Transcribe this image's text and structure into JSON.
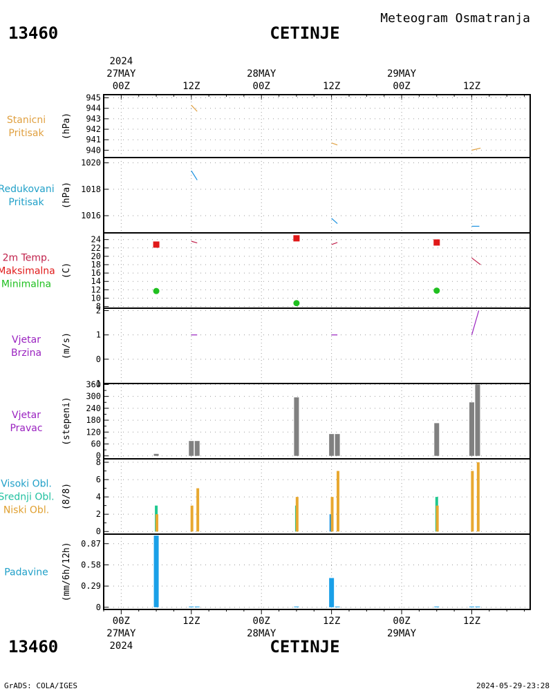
{
  "header": {
    "station_id": "13460",
    "station_name": "CETINJE",
    "product": "Meteogram Osmatranja"
  },
  "footer": {
    "credit": "GrADS: COLA/IGES",
    "timestamp": "2024-05-29-23:28"
  },
  "time_axis": {
    "year": "2024",
    "major_labels": [
      {
        "t": 0,
        "hour": "00Z",
        "date": "27MAY",
        "year": "2024"
      },
      {
        "t": 12,
        "hour": "12Z"
      },
      {
        "t": 24,
        "hour": "00Z",
        "date": "28MAY"
      },
      {
        "t": 36,
        "hour": "12Z"
      },
      {
        "t": 48,
        "hour": "00Z",
        "date": "29MAY"
      },
      {
        "t": 60,
        "hour": "12Z"
      }
    ],
    "range_hours": [
      -3,
      70
    ]
  },
  "chart_data": [
    {
      "id": "pressure-station",
      "type": "line",
      "label_lines": [
        "Stanicni",
        "Pritisak"
      ],
      "label_color": "#e0a040",
      "ylabel": "(hPa)",
      "ylim": [
        939.3,
        945.3
      ],
      "yticks": [
        940,
        941,
        942,
        943,
        944,
        945
      ],
      "series": [
        {
          "color": "#e0a040",
          "segments": [
            [
              [
                12,
                944.3
              ],
              [
                13,
                943.7
              ]
            ],
            [
              [
                36,
                940.7
              ],
              [
                37,
                940.5
              ]
            ],
            [
              [
                60,
                940.0
              ],
              [
                61.5,
                940.2
              ]
            ]
          ]
        }
      ]
    },
    {
      "id": "pressure-reduced",
      "type": "line",
      "label_lines": [
        "Redukovani",
        "Pritisak"
      ],
      "label_color": "#20a0c8",
      "ylabel": "(hPa)",
      "ylim": [
        1014.7,
        1020.4
      ],
      "yticks": [
        1016,
        1018,
        1020
      ],
      "series": [
        {
          "color": "#1890e0",
          "segments": [
            [
              [
                12,
                1019.4
              ],
              [
                13,
                1018.7
              ]
            ],
            [
              [
                36,
                1015.8
              ],
              [
                37,
                1015.4
              ]
            ],
            [
              [
                60,
                1015.2
              ],
              [
                61.3,
                1015.2
              ]
            ]
          ]
        }
      ]
    },
    {
      "id": "temperature",
      "type": "line",
      "label_lines": [
        "2m Temp.",
        "Maksimalna",
        "Minimalna"
      ],
      "label_colors": [
        "#c0204a",
        "#e01818",
        "#20c020"
      ],
      "ylabel": "(C)",
      "ylim": [
        7.6,
        25.6
      ],
      "yticks": [
        8,
        10,
        12,
        14,
        16,
        18,
        20,
        22,
        24
      ],
      "series": [
        {
          "color": "#c0204a",
          "segments": [
            [
              [
                12,
                23.6
              ],
              [
                13,
                23.2
              ]
            ],
            [
              [
                36,
                22.8
              ],
              [
                37,
                23.3
              ]
            ],
            [
              [
                60,
                19.6
              ],
              [
                61.5,
                18.0
              ]
            ]
          ]
        }
      ],
      "max_markers": [
        [
          6,
          22.8
        ],
        [
          30,
          24.3
        ],
        [
          54,
          23.3
        ]
      ],
      "min_markers": [
        [
          6,
          11.7
        ],
        [
          30,
          8.8
        ],
        [
          54,
          11.8
        ]
      ]
    },
    {
      "id": "wind-speed",
      "type": "line",
      "label_lines": [
        "Vjetar",
        "Brzina"
      ],
      "label_color": "#9a22c0",
      "ylabel": "(m/s)",
      "ylim": [
        -1,
        2.1
      ],
      "yticks": [
        -1,
        0,
        1,
        2
      ],
      "series": [
        {
          "color": "#9a22c0",
          "segments": [
            [
              [
                12,
                1.0
              ],
              [
                13,
                1.0
              ]
            ],
            [
              [
                36,
                1.0
              ],
              [
                37,
                1.0
              ]
            ],
            [
              [
                60,
                1.0
              ],
              [
                61.2,
                2.0
              ]
            ]
          ]
        }
      ]
    },
    {
      "id": "wind-direction",
      "type": "bar",
      "label_lines": [
        "Vjetar",
        "Pravac"
      ],
      "label_color": "#9a22c0",
      "ylabel": "(stepeni)",
      "ylim": [
        -15,
        365
      ],
      "yticks": [
        0,
        60,
        120,
        180,
        240,
        300,
        360
      ],
      "ytick_extra": [
        30,
        90,
        150,
        210,
        270,
        330
      ],
      "bar_color": "#808080",
      "bars": [
        {
          "t": 6,
          "v": 10
        },
        {
          "t": 12,
          "v": 75
        },
        {
          "t": 13,
          "v": 75
        },
        {
          "t": 30,
          "v": 295
        },
        {
          "t": 36,
          "v": 110
        },
        {
          "t": 37,
          "v": 110
        },
        {
          "t": 54,
          "v": 165
        },
        {
          "t": 60,
          "v": 270
        },
        {
          "t": 61,
          "v": 360
        }
      ]
    },
    {
      "id": "cloud-cover",
      "type": "bar",
      "label_lines": [
        "Visoki Obl.",
        "Srednji Obl.",
        "Niski Obl."
      ],
      "label_colors": [
        "#20a0c8",
        "#20c0a0",
        "#e0a030"
      ],
      "ylabel": "(8/8)",
      "ylim": [
        -0.3,
        8.4
      ],
      "yticks": [
        0,
        2,
        4,
        6,
        8
      ],
      "ytick_extra": [
        1,
        3,
        5,
        7
      ],
      "series": [
        {
          "name": "Visoki Obl.",
          "color": "#1890e0",
          "bars": [
            {
              "t": 36,
              "v": 2
            }
          ]
        },
        {
          "name": "Srednji Obl.",
          "color": "#20c890",
          "bars": [
            {
              "t": 6,
              "v": 3
            },
            {
              "t": 30,
              "v": 3
            },
            {
              "t": 54,
              "v": 4
            }
          ]
        },
        {
          "name": "Niski Obl.",
          "color": "#e8a830",
          "bars": [
            {
              "t": 6,
              "v": 2
            },
            {
              "t": 12,
              "v": 3
            },
            {
              "t": 13,
              "v": 5
            },
            {
              "t": 30,
              "v": 4
            },
            {
              "t": 36,
              "v": 4
            },
            {
              "t": 37,
              "v": 7
            },
            {
              "t": 54,
              "v": 3
            },
            {
              "t": 60,
              "v": 7
            },
            {
              "t": 61,
              "v": 8
            }
          ]
        }
      ]
    },
    {
      "id": "precipitation",
      "type": "bar",
      "label_lines": [
        "Padavine"
      ],
      "label_color": "#20a0c8",
      "ylabel": "(mm/6h/12h)",
      "ylim": [
        -0.03,
        1.0
      ],
      "yticks": [
        0,
        0.29,
        0.58,
        0.87
      ],
      "ytick_labels": [
        "0",
        "0.29",
        "0.58",
        "0.87"
      ],
      "bar_color": "#1aa0e8",
      "bars": [
        {
          "t": 6,
          "v": 0.98
        },
        {
          "t": 12,
          "v": 0.01
        },
        {
          "t": 13,
          "v": 0.01
        },
        {
          "t": 30,
          "v": 0.01
        },
        {
          "t": 36,
          "v": 0.4
        },
        {
          "t": 37,
          "v": 0.01
        },
        {
          "t": 54,
          "v": 0.01
        },
        {
          "t": 60,
          "v": 0.01
        },
        {
          "t": 61,
          "v": 0.01
        }
      ]
    }
  ]
}
